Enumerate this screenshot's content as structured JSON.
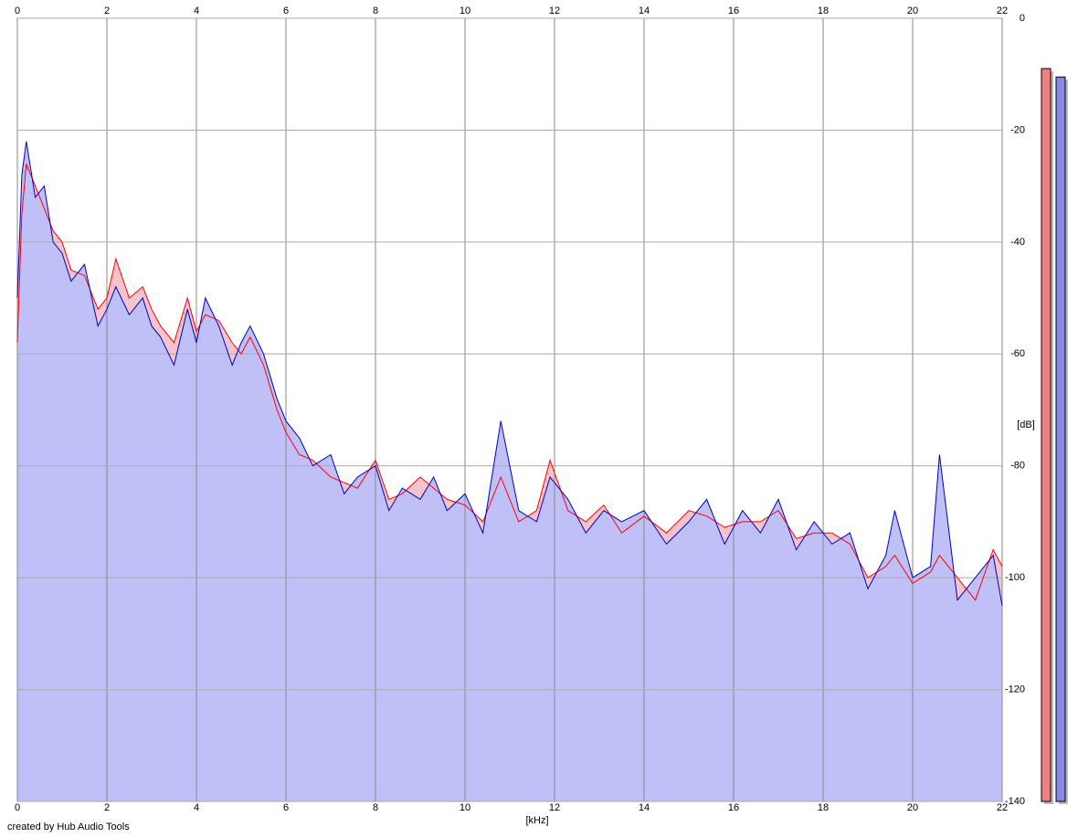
{
  "chart_data": {
    "type": "line",
    "xlabel": "[kHz]",
    "ylabel": "[dB]",
    "credit": "created by Hub Audio Tools",
    "x": [
      0,
      0.1,
      0.2,
      0.4,
      0.6,
      0.8,
      1,
      1.2,
      1.5,
      1.8,
      2,
      2.2,
      2.5,
      2.8,
      3,
      3.2,
      3.5,
      3.8,
      4,
      4.2,
      4.5,
      4.8,
      5,
      5.2,
      5.5,
      5.8,
      6,
      6.3,
      6.6,
      7,
      7.3,
      7.6,
      8,
      8.3,
      8.6,
      9,
      9.3,
      9.6,
      10,
      10.4,
      10.8,
      11.2,
      11.6,
      11.9,
      12.3,
      12.7,
      13.1,
      13.5,
      14,
      14.5,
      15,
      15.4,
      15.8,
      16.2,
      16.6,
      17,
      17.4,
      17.8,
      18.2,
      18.6,
      19,
      19.4,
      19.6,
      20,
      20.4,
      20.6,
      21,
      21.4,
      21.8,
      22
    ],
    "series": [
      {
        "color": "#ff0000",
        "fill": "#f4c4cc",
        "values": [
          -58,
          -35,
          -26,
          -30,
          -34,
          -38,
          -40,
          -45,
          -46,
          -52,
          -50,
          -43,
          -50,
          -48,
          -52,
          -55,
          -58,
          -50,
          -56,
          -53,
          -54,
          -58,
          -60,
          -57,
          -62,
          -70,
          -74,
          -78,
          -79,
          -82,
          -83,
          -84,
          -79,
          -86,
          -85,
          -82,
          -84,
          -86,
          -87,
          -90,
          -82,
          -90,
          -88,
          -79,
          -88,
          -90,
          -87,
          -92,
          -89,
          -92,
          -88,
          -89,
          -91,
          -90,
          -90,
          -88,
          -93,
          -92,
          -92,
          -94,
          -100,
          -98,
          -96,
          -101,
          -99,
          -96,
          -100,
          -104,
          -95,
          -98
        ]
      },
      {
        "color": "#0000c0",
        "fill": "#c0c0f8",
        "values": [
          -50,
          -28,
          -22,
          -32,
          -30,
          -40,
          -42,
          -47,
          -44,
          -55,
          -52,
          -48,
          -53,
          -50,
          -55,
          -57,
          -62,
          -52,
          -58,
          -50,
          -55,
          -62,
          -58,
          -55,
          -60,
          -68,
          -72,
          -75,
          -80,
          -78,
          -85,
          -82,
          -80,
          -88,
          -84,
          -86,
          -82,
          -88,
          -85,
          -92,
          -72,
          -88,
          -90,
          -82,
          -86,
          -92,
          -88,
          -90,
          -88,
          -94,
          -90,
          -86,
          -94,
          -88,
          -92,
          -86,
          -95,
          -90,
          -94,
          -92,
          -102,
          -96,
          -88,
          -100,
          -98,
          -78,
          -104,
          -100,
          -96,
          -105
        ]
      }
    ],
    "levels": [
      {
        "color": "#f08080",
        "value": -9
      },
      {
        "color": "#8888e8",
        "value": -10.5
      }
    ],
    "xlim": [
      0,
      22
    ],
    "xticks": [
      0,
      2,
      4,
      6,
      8,
      10,
      12,
      14,
      16,
      18,
      20,
      22
    ],
    "ylim": [
      -140,
      0
    ],
    "yticks": [
      0,
      -20,
      -40,
      -60,
      -80,
      -100,
      -120,
      -140
    ],
    "grid": true
  }
}
